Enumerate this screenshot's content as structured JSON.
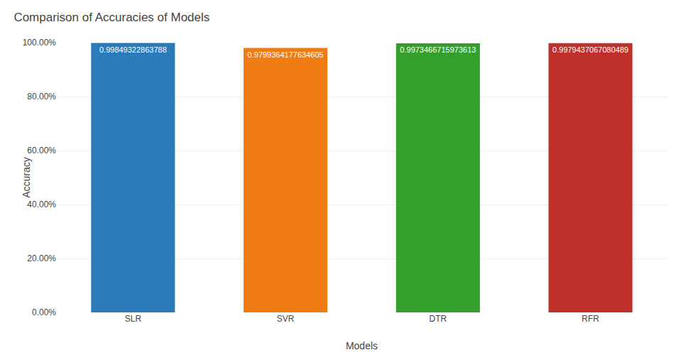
{
  "chart_data": {
    "type": "bar",
    "title": "Comparison of Accuracies of Models",
    "xlabel": "Models",
    "ylabel": "Accuracy",
    "categories": [
      "SLR",
      "SVR",
      "DTR",
      "RFR"
    ],
    "values": [
      0.99849322863788,
      0.9799364177634605,
      0.9973466715973613,
      0.9979437067080489
    ],
    "colors": [
      "#2b7bba",
      "#f07d14",
      "#33a02c",
      "#c0302a"
    ],
    "data_labels": true,
    "ylim": [
      0,
      1.0
    ],
    "yticks": [
      {
        "value": 0,
        "label": "0.00%"
      },
      {
        "value": 0.2,
        "label": "20.00%"
      },
      {
        "value": 0.4,
        "label": "40.00%"
      },
      {
        "value": 0.6,
        "label": "60.00%"
      },
      {
        "value": 0.8,
        "label": "80.00%"
      },
      {
        "value": 1.0,
        "label": "100.00%"
      }
    ],
    "grid": true
  }
}
